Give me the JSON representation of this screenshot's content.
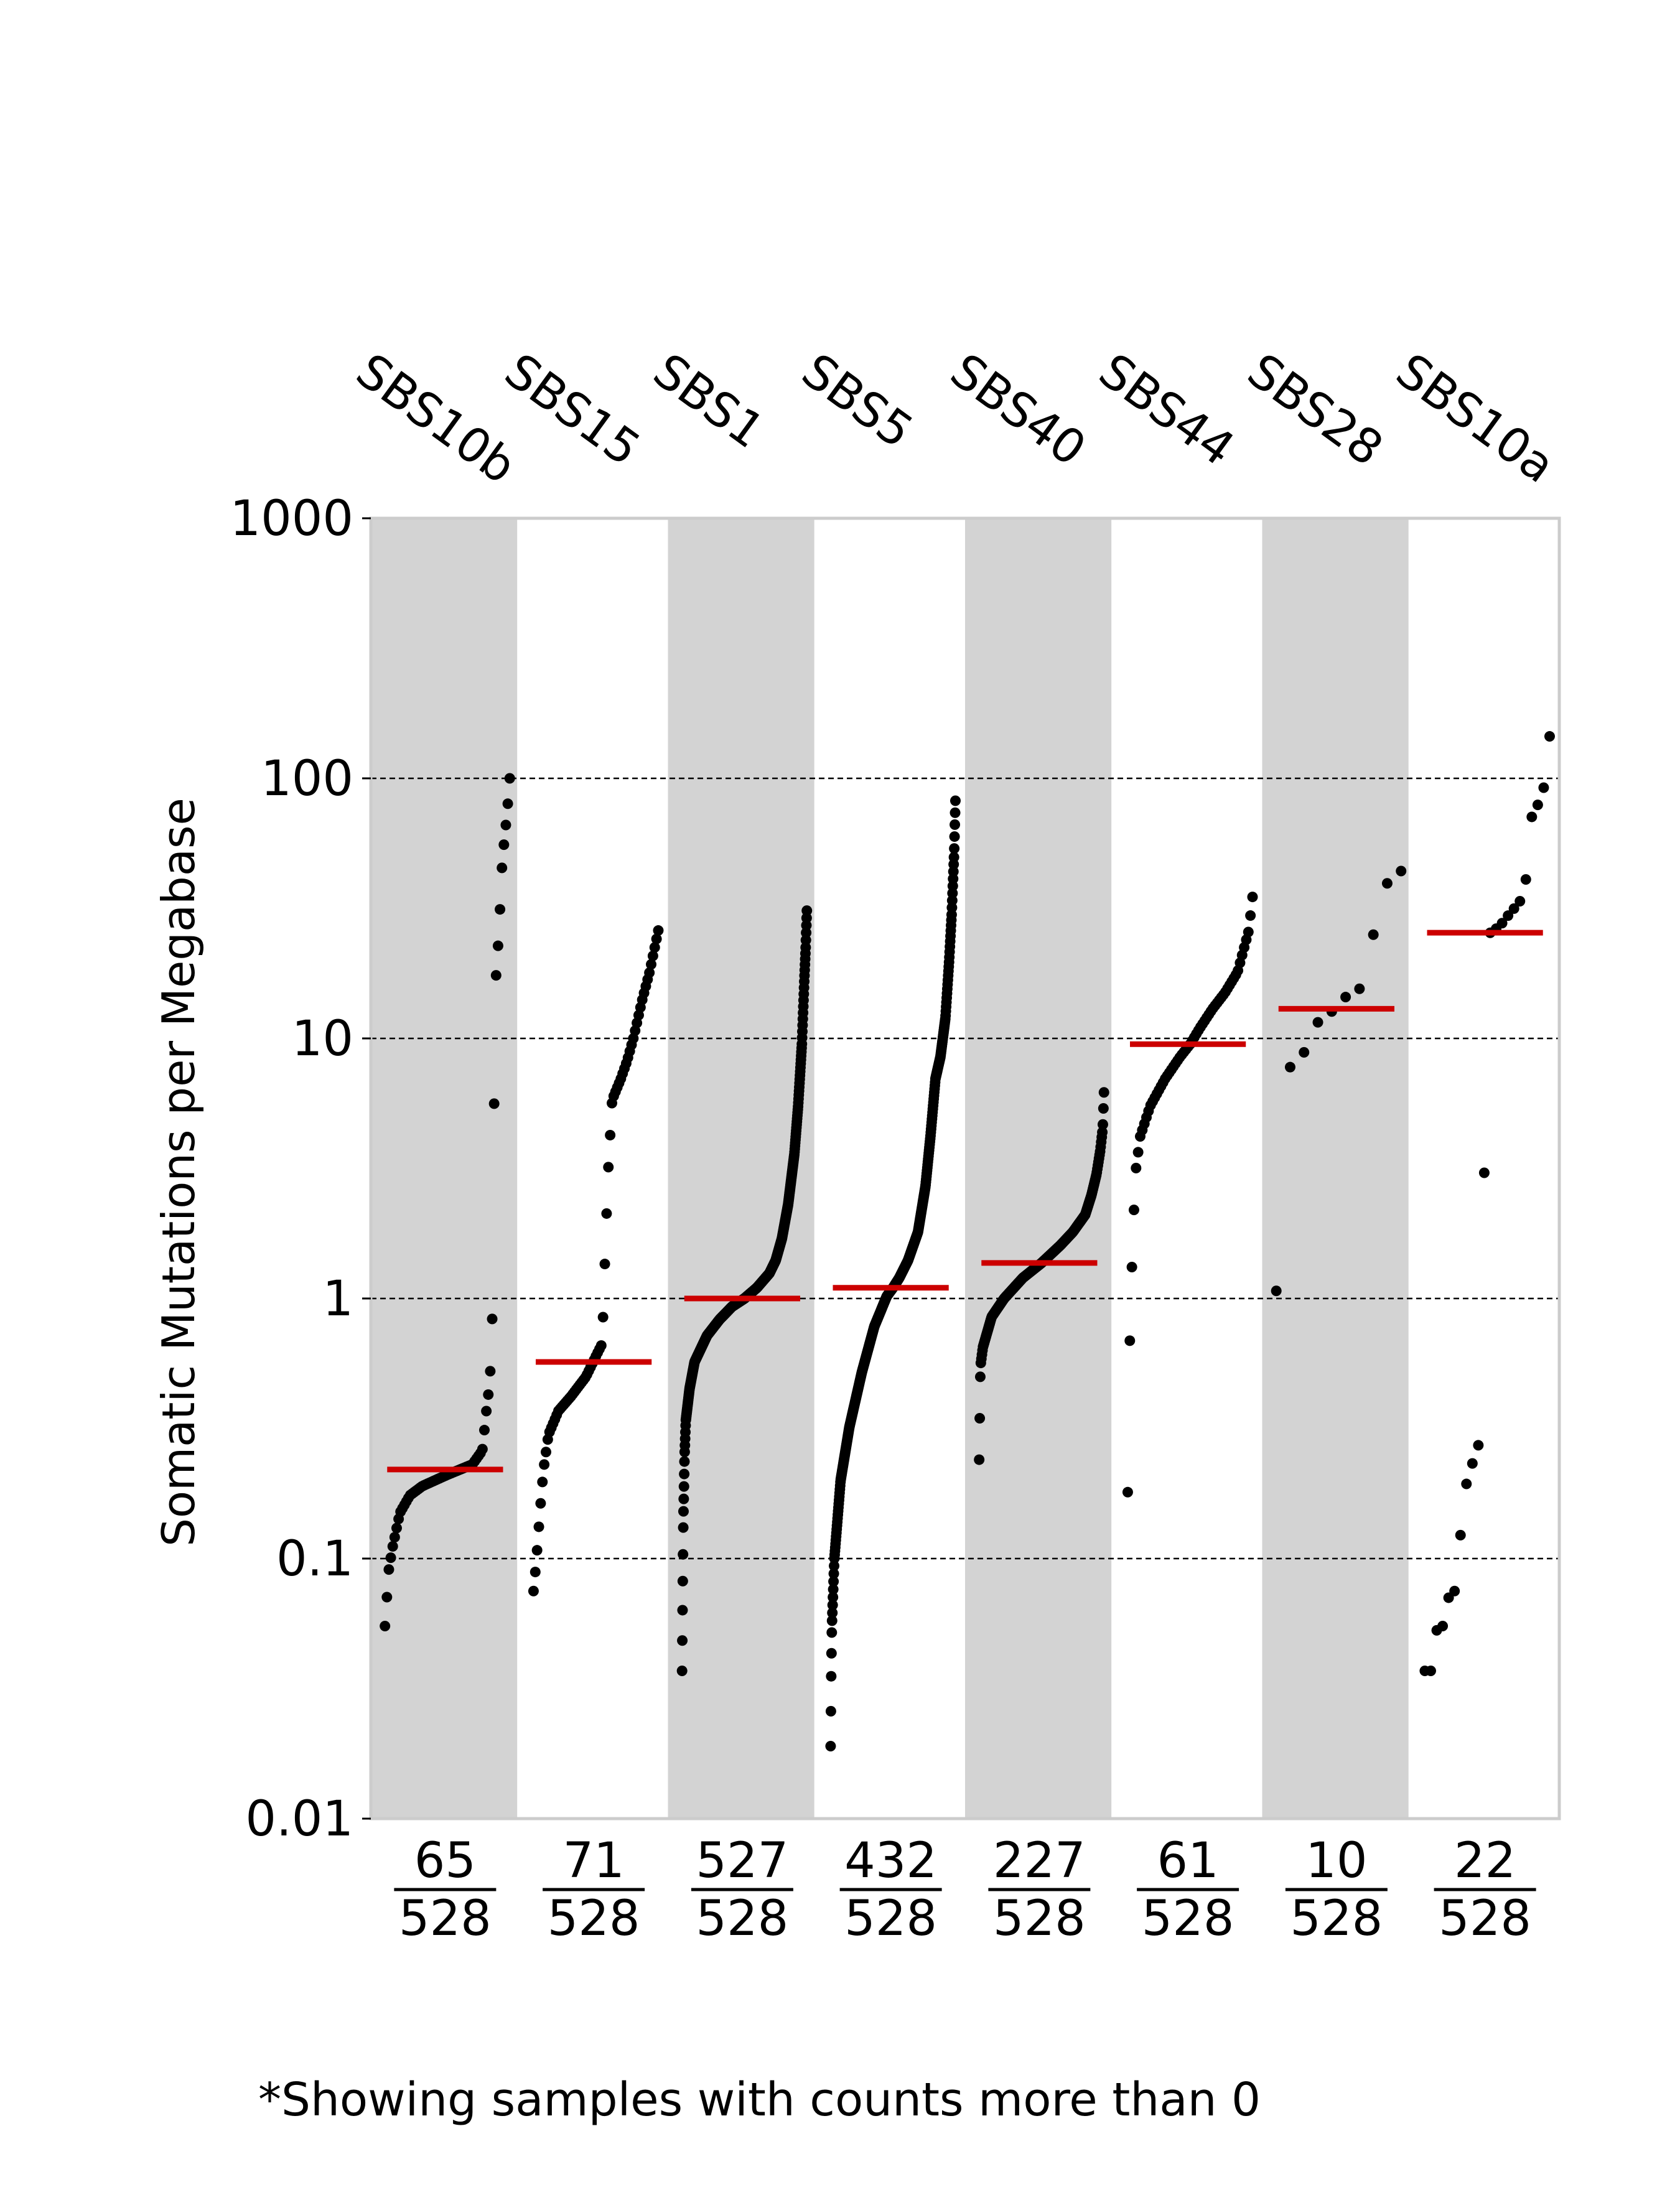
{
  "chart_data": {
    "type": "scatter",
    "title": "",
    "ylabel": "Somatic Mutations per Megabase",
    "yscale": "log",
    "ylim": [
      0.01,
      1000
    ],
    "yticks": [
      {
        "value": 0.01,
        "label": "0.01"
      },
      {
        "value": 0.1,
        "label": "0.1"
      },
      {
        "value": 1,
        "label": "1"
      },
      {
        "value": 10,
        "label": "10"
      },
      {
        "value": 100,
        "label": "100"
      },
      {
        "value": 1000,
        "label": "1000"
      }
    ],
    "gridlines": [
      0.1,
      1,
      10,
      100
    ],
    "footnote": "*Showing samples with counts more than 0",
    "colors": {
      "band": "#d3d3d3",
      "median": "#cc0000",
      "point": "#000000",
      "grid": "#000000",
      "frame": "#cccccc"
    },
    "signatures": [
      {
        "name": "SBS10b",
        "count": "65",
        "total": "528",
        "median": 0.22,
        "anchors": [
          [
            0,
            0.055
          ],
          [
            0.03,
            0.09
          ],
          [
            0.06,
            0.11
          ],
          [
            0.12,
            0.15
          ],
          [
            0.2,
            0.175
          ],
          [
            0.3,
            0.19
          ],
          [
            0.5,
            0.21
          ],
          [
            0.7,
            0.23
          ],
          [
            0.78,
            0.26
          ],
          [
            0.82,
            0.4
          ],
          [
            0.84,
            0.47
          ],
          [
            0.86,
            0.85
          ],
          [
            0.87,
            2.1
          ],
          [
            0.88,
            15
          ],
          [
            0.9,
            20
          ],
          [
            0.92,
            30
          ],
          [
            0.94,
            48
          ],
          [
            0.96,
            60
          ],
          [
            0.98,
            75
          ],
          [
            1,
            100
          ]
        ]
      },
      {
        "name": "SBS15",
        "count": "71",
        "total": "528",
        "median": 0.57,
        "anchors": [
          [
            0,
            0.075
          ],
          [
            0.02,
            0.095
          ],
          [
            0.06,
            0.17
          ],
          [
            0.08,
            0.22
          ],
          [
            0.12,
            0.3
          ],
          [
            0.2,
            0.37
          ],
          [
            0.3,
            0.42
          ],
          [
            0.42,
            0.5
          ],
          [
            0.5,
            0.6
          ],
          [
            0.55,
            0.67
          ],
          [
            0.58,
            1.8
          ],
          [
            0.6,
            3.2
          ],
          [
            0.63,
            5.8
          ],
          [
            0.7,
            7
          ],
          [
            0.75,
            8.2
          ],
          [
            0.8,
            10
          ],
          [
            0.87,
            14
          ],
          [
            0.93,
            18
          ],
          [
            1,
            26
          ]
        ]
      },
      {
        "name": "SBS1",
        "count": "527",
        "total": "528",
        "median": 1.0,
        "anchors": [
          [
            0,
            0.037
          ],
          [
            0.005,
            0.075
          ],
          [
            0.01,
            0.14
          ],
          [
            0.02,
            0.25
          ],
          [
            0.03,
            0.34
          ],
          [
            0.06,
            0.45
          ],
          [
            0.1,
            0.57
          ],
          [
            0.2,
            0.72
          ],
          [
            0.3,
            0.83
          ],
          [
            0.4,
            0.93
          ],
          [
            0.5,
            1.0
          ],
          [
            0.6,
            1.1
          ],
          [
            0.7,
            1.25
          ],
          [
            0.75,
            1.4
          ],
          [
            0.8,
            1.7
          ],
          [
            0.85,
            2.3
          ],
          [
            0.9,
            3.6
          ],
          [
            0.93,
            5.5
          ],
          [
            0.96,
            9.5
          ],
          [
            0.98,
            17
          ],
          [
            0.99,
            22
          ],
          [
            1,
            31
          ]
        ]
      },
      {
        "name": "SBS5",
        "count": "432",
        "total": "528",
        "median": 1.1,
        "anchors": [
          [
            0,
            0.019
          ],
          [
            0.005,
            0.037
          ],
          [
            0.01,
            0.055
          ],
          [
            0.03,
            0.1
          ],
          [
            0.08,
            0.2
          ],
          [
            0.15,
            0.32
          ],
          [
            0.25,
            0.52
          ],
          [
            0.35,
            0.78
          ],
          [
            0.45,
            1.02
          ],
          [
            0.5,
            1.1
          ],
          [
            0.55,
            1.2
          ],
          [
            0.62,
            1.4
          ],
          [
            0.7,
            1.8
          ],
          [
            0.76,
            2.7
          ],
          [
            0.8,
            4.2
          ],
          [
            0.84,
            7
          ],
          [
            0.88,
            8.5
          ],
          [
            0.92,
            12
          ],
          [
            0.95,
            20
          ],
          [
            0.97,
            30
          ],
          [
            0.99,
            52
          ],
          [
            1,
            82
          ]
        ]
      },
      {
        "name": "SBS40",
        "count": "227",
        "total": "528",
        "median": 1.37,
        "anchors": [
          [
            0,
            0.24
          ],
          [
            0.01,
            0.55
          ],
          [
            0.03,
            0.65
          ],
          [
            0.1,
            0.85
          ],
          [
            0.2,
            1.0
          ],
          [
            0.35,
            1.2
          ],
          [
            0.5,
            1.37
          ],
          [
            0.65,
            1.6
          ],
          [
            0.75,
            1.8
          ],
          [
            0.85,
            2.1
          ],
          [
            0.9,
            2.5
          ],
          [
            0.94,
            3.0
          ],
          [
            0.97,
            3.7
          ],
          [
            0.99,
            4.5
          ],
          [
            1,
            6.2
          ]
        ]
      },
      {
        "name": "SBS44",
        "count": "61",
        "total": "528",
        "median": 9.5,
        "anchors": [
          [
            0,
            0.18
          ],
          [
            0.02,
            0.9
          ],
          [
            0.04,
            1.6
          ],
          [
            0.06,
            3
          ],
          [
            0.1,
            4.2
          ],
          [
            0.18,
            5.5
          ],
          [
            0.3,
            7
          ],
          [
            0.42,
            8.5
          ],
          [
            0.5,
            9.5
          ],
          [
            0.58,
            11
          ],
          [
            0.68,
            13
          ],
          [
            0.78,
            15
          ],
          [
            0.88,
            18
          ],
          [
            0.94,
            23
          ],
          [
            0.97,
            26
          ],
          [
            1,
            35
          ]
        ]
      },
      {
        "name": "SBS28",
        "count": "10",
        "total": "528",
        "median": 13,
        "anchors": [
          [
            0,
            1.07
          ],
          [
            0.1,
            7.7
          ],
          [
            0.2,
            8.2
          ],
          [
            0.3,
            11.5
          ],
          [
            0.4,
            11.6
          ],
          [
            0.5,
            14.2
          ],
          [
            0.6,
            14.6
          ],
          [
            0.7,
            16
          ],
          [
            0.85,
            38
          ],
          [
            1,
            44
          ]
        ]
      },
      {
        "name": "SBS10a",
        "count": "22",
        "total": "528",
        "median": 25.5,
        "anchors": [
          [
            0,
            0.037
          ],
          [
            0.05,
            0.037
          ],
          [
            0.1,
            0.055
          ],
          [
            0.15,
            0.055
          ],
          [
            0.2,
            0.075
          ],
          [
            0.25,
            0.075
          ],
          [
            0.3,
            0.15
          ],
          [
            0.35,
            0.22
          ],
          [
            0.4,
            0.24
          ],
          [
            0.45,
            0.3
          ],
          [
            0.5,
            25
          ],
          [
            0.55,
            26
          ],
          [
            0.6,
            27
          ],
          [
            0.65,
            29
          ],
          [
            0.7,
            31
          ],
          [
            0.75,
            33
          ],
          [
            0.8,
            36
          ],
          [
            0.85,
            70
          ],
          [
            0.9,
            78
          ],
          [
            0.95,
            90
          ],
          [
            1,
            145
          ]
        ]
      }
    ]
  }
}
